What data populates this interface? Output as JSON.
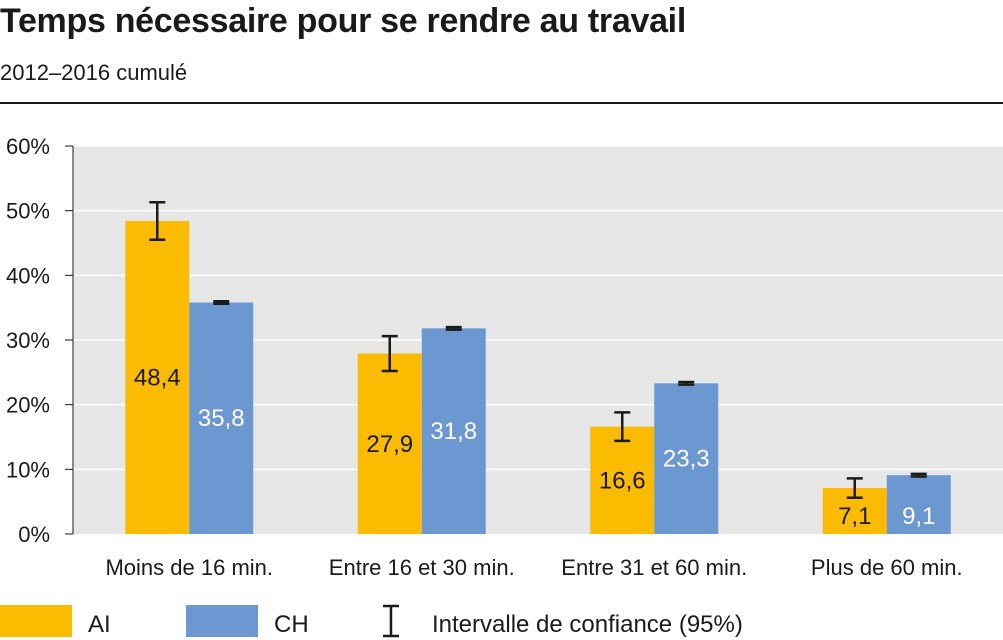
{
  "header": {
    "title": "Temps nécessaire pour se rendre au travail",
    "subtitle": "2012–2016 cumulé"
  },
  "legend": {
    "ai_label": "AI",
    "ch_label": "CH",
    "ci_label": "Intervalle de confiance (95%)"
  },
  "colors": {
    "ai": "#FBBB00",
    "ch": "#6C98D1",
    "plot_background": "#E6E6E6",
    "grid": "#FFFFFF",
    "error_bar": "#1A1A1A"
  },
  "chart_data": {
    "type": "bar",
    "title": "Temps nécessaire pour se rendre au travail",
    "subtitle": "2012–2016 cumulé",
    "xlabel": "",
    "ylabel": "",
    "ylim": [
      0,
      60
    ],
    "yticks": [
      "0%",
      "10%",
      "20%",
      "30%",
      "40%",
      "50%",
      "60%"
    ],
    "yticks_values": [
      0,
      10,
      20,
      30,
      40,
      50,
      60
    ],
    "grid": true,
    "legend_position": "bottom",
    "categories": [
      "Moins de 16 min.",
      "Entre 16 et 30 min.",
      "Entre 31 et 60 min.",
      "Plus de 60 min."
    ],
    "series": [
      {
        "name": "AI",
        "values": [
          48.4,
          27.9,
          16.6,
          7.1
        ],
        "labels": [
          "48,4",
          "27,9",
          "16,6",
          "7,1"
        ],
        "ci_low": [
          45.5,
          25.2,
          14.4,
          5.6
        ],
        "ci_high": [
          51.3,
          30.6,
          18.8,
          8.6
        ]
      },
      {
        "name": "CH",
        "values": [
          35.8,
          31.8,
          23.3,
          9.1
        ],
        "labels": [
          "35,8",
          "31,8",
          "23,3",
          "9,1"
        ],
        "ci_low": [
          35.6,
          31.6,
          23.1,
          8.9
        ],
        "ci_high": [
          36.0,
          32.0,
          23.5,
          9.3
        ]
      }
    ]
  }
}
